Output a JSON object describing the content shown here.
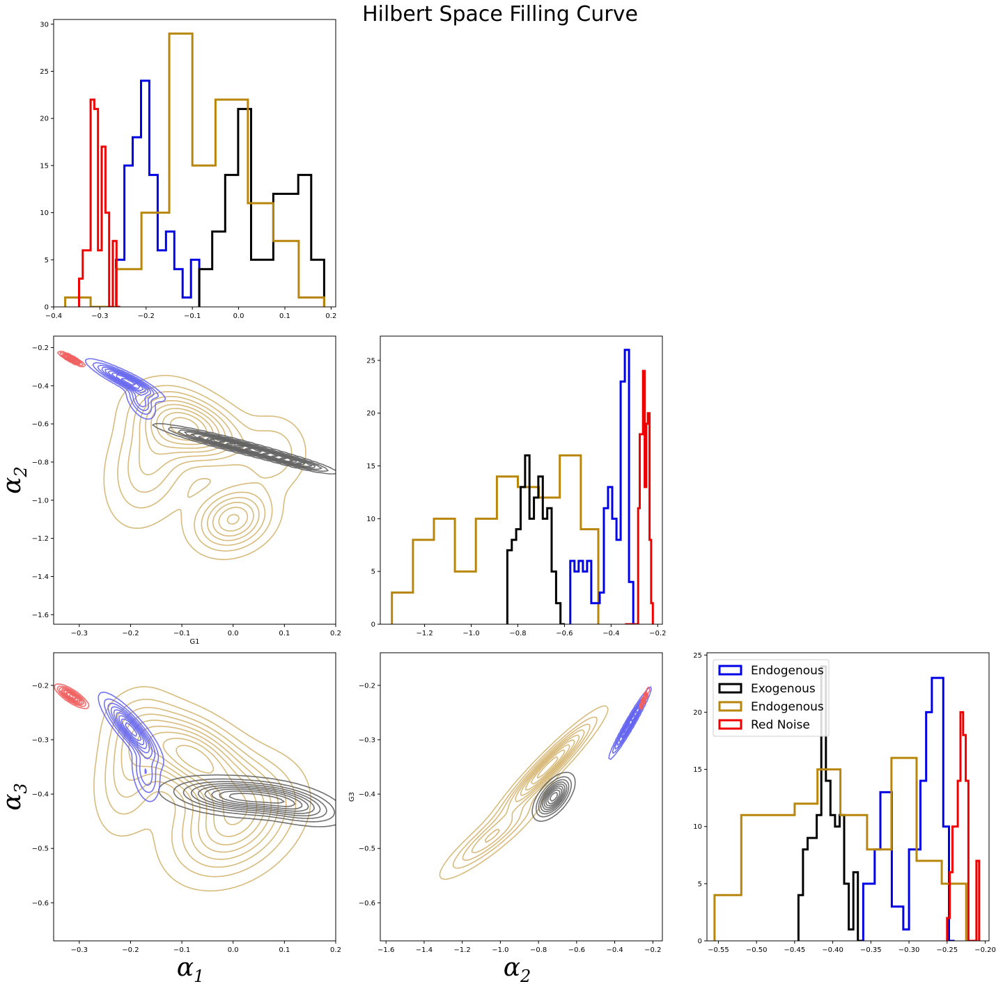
{
  "title": "Hilbert Space Filling Curve",
  "colors": {
    "endo_blue": "#0000e6",
    "exo": "#000000",
    "endo_gold": "#b8860b",
    "red": "#ee0000",
    "kde_blue": "#6464f0",
    "kde_exo": "#606060",
    "kde_gold": "#d4b46e",
    "kde_red": "#f06060"
  },
  "legend": {
    "placement": "upper-left",
    "entries": [
      "Endogenous",
      "Exogenous",
      "Endogenous",
      "Red Noise"
    ]
  },
  "axis_texts": {
    "g1": "G1",
    "g3": "G3",
    "alpha": "α",
    "sub1": "1",
    "sub2": "2",
    "sub3": "3"
  },
  "chart_data": [
    {
      "type": "histogram",
      "panel": "top-left",
      "xlim": [
        -0.4,
        0.21
      ],
      "ylim": [
        0,
        30.5
      ],
      "xticks": [
        -0.4,
        -0.3,
        -0.2,
        -0.1,
        0.0,
        0.1,
        0.2
      ],
      "xtick_labels": [
        "−0.4",
        "−0.3",
        "−0.2",
        "−0.1",
        "0.0",
        "0.1",
        "0.2"
      ],
      "yticks": [
        0,
        5,
        10,
        15,
        20,
        25,
        30
      ],
      "ytick_labels": [
        "0",
        "5",
        "10",
        "15",
        "20",
        "25",
        "30"
      ],
      "series": [
        {
          "color": "endo_blue",
          "edges": [
            -0.265,
            -0.247,
            -0.229,
            -0.211,
            -0.193,
            -0.175,
            -0.157,
            -0.139,
            -0.121,
            -0.103,
            -0.085
          ],
          "counts": [
            5,
            15,
            18,
            24,
            14,
            6,
            8,
            4,
            1,
            5
          ]
        },
        {
          "color": "exo",
          "edges": [
            -0.085,
            -0.057,
            -0.029,
            -0.001,
            0.027,
            0.075,
            0.129,
            0.157,
            0.185
          ],
          "counts": [
            4,
            8,
            14,
            21,
            5,
            12,
            14,
            5
          ]
        },
        {
          "color": "endo_gold",
          "edges": [
            -0.375,
            -0.32,
            -0.265,
            -0.21,
            -0.15,
            -0.1,
            -0.05,
            0.02,
            0.075,
            0.13,
            0.185
          ],
          "counts": [
            1,
            0,
            4,
            10,
            29,
            15,
            22,
            11,
            7,
            1
          ]
        },
        {
          "color": "red",
          "edges": [
            -0.345,
            -0.337,
            -0.328,
            -0.32,
            -0.312,
            -0.304,
            -0.296,
            -0.288,
            -0.28,
            -0.272,
            -0.264,
            -0.256
          ],
          "counts": [
            3,
            6,
            6,
            22,
            21,
            6,
            17,
            10,
            0,
            7,
            0
          ]
        }
      ]
    },
    {
      "type": "kde",
      "panel": "middle-left",
      "xlim": [
        -0.35,
        0.2
      ],
      "ylim": [
        -1.65,
        -0.14
      ],
      "xticks": [
        -0.3,
        -0.2,
        -0.1,
        0.0,
        0.1,
        0.2
      ],
      "xtick_labels": [
        "−0.3",
        "−0.2",
        "−0.1",
        "0.0",
        "0.1",
        "0.2"
      ],
      "yticks": [
        -1.6,
        -1.4,
        -1.2,
        -1.0,
        -0.8,
        -0.6,
        -0.4,
        -0.2
      ],
      "ytick_labels": [
        "−1.6",
        "−1.4",
        "−1.2",
        "−1.0",
        "−0.8",
        "−0.6",
        "−0.4",
        "−0.2"
      ],
      "xlabel_key": "g1",
      "ylabel_sub": "sub2",
      "clusters": [
        {
          "color": "kde_gold",
          "levels": 9,
          "blobs": [
            {
              "cx": -0.08,
              "cy": -0.62,
              "sx": 0.06,
              "sy": 0.11,
              "rho": -0.4,
              "w": 1.0
            },
            {
              "cx": 0.0,
              "cy": -1.1,
              "sx": 0.045,
              "sy": 0.1,
              "rho": 0.2,
              "w": 0.85
            },
            {
              "cx": -0.16,
              "cy": -0.78,
              "sx": 0.05,
              "sy": 0.2,
              "rho": 0.3,
              "w": 0.5
            },
            {
              "cx": 0.08,
              "cy": -0.75,
              "sx": 0.04,
              "sy": 0.12,
              "rho": 0.0,
              "w": 0.3
            }
          ]
        },
        {
          "color": "kde_exo",
          "levels": 9,
          "blobs": [
            {
              "cx": 0.0,
              "cy": -0.71,
              "sx": 0.07,
              "sy": 0.05,
              "rho": -0.95,
              "w": 1.0
            },
            {
              "cx": 0.12,
              "cy": -0.8,
              "sx": 0.04,
              "sy": 0.03,
              "rho": -0.9,
              "w": 0.6
            }
          ]
        },
        {
          "color": "kde_blue",
          "levels": 9,
          "blobs": [
            {
              "cx": -0.21,
              "cy": -0.37,
              "sx": 0.035,
              "sy": 0.05,
              "rho": -0.9,
              "w": 1.0
            },
            {
              "cx": -0.18,
              "cy": -0.48,
              "sx": 0.015,
              "sy": 0.05,
              "rho": -0.5,
              "w": 0.5
            }
          ]
        },
        {
          "color": "kde_red",
          "levels": 9,
          "blobs": [
            {
              "cx": -0.315,
              "cy": -0.26,
              "sx": 0.012,
              "sy": 0.018,
              "rho": -0.9,
              "w": 1.0
            }
          ]
        }
      ]
    },
    {
      "type": "histogram",
      "panel": "middle-center",
      "xlim": [
        -1.39,
        -0.18
      ],
      "ylim": [
        0,
        27.3
      ],
      "xticks": [
        -1.2,
        -1.0,
        -0.8,
        -0.6,
        -0.4,
        -0.2
      ],
      "xtick_labels": [
        "−1.2",
        "−1.0",
        "−0.8",
        "−0.6",
        "−0.4",
        "−0.2"
      ],
      "yticks": [
        0,
        5,
        10,
        15,
        20,
        25
      ],
      "ytick_labels": [
        "0",
        "5",
        "10",
        "15",
        "20",
        "25"
      ],
      "series": [
        {
          "color": "endo_gold",
          "edges": [
            -1.34,
            -1.25,
            -1.16,
            -1.07,
            -0.98,
            -0.89,
            -0.8,
            -0.71,
            -0.62,
            -0.53,
            -0.455
          ],
          "counts": [
            3,
            8,
            10,
            5,
            10,
            14,
            13,
            12,
            16,
            9
          ]
        },
        {
          "color": "exo",
          "edges": [
            -0.845,
            -0.826,
            -0.807,
            -0.788,
            -0.769,
            -0.75,
            -0.731,
            -0.712,
            -0.693,
            -0.674,
            -0.655,
            -0.636,
            -0.617,
            -0.598
          ],
          "counts": [
            7,
            8,
            9,
            13,
            16,
            10,
            12,
            14,
            10,
            11,
            5,
            2,
            0
          ]
        },
        {
          "color": "endo_blue",
          "edges": [
            -0.575,
            -0.557,
            -0.539,
            -0.521,
            -0.503,
            -0.485,
            -0.467,
            -0.449,
            -0.431,
            -0.413,
            -0.395,
            -0.377,
            -0.359,
            -0.341,
            -0.323,
            -0.305,
            -0.287
          ],
          "counts": [
            6,
            5,
            6,
            5,
            6,
            2,
            2,
            3,
            11,
            13,
            10,
            8,
            23,
            26,
            4,
            0
          ]
        },
        {
          "color": "red",
          "edges": [
            -0.34,
            -0.333,
            -0.326,
            -0.319,
            -0.312,
            -0.305,
            -0.298,
            -0.291,
            -0.284,
            -0.277,
            -0.27,
            -0.263,
            -0.256,
            -0.249,
            -0.242,
            -0.235,
            -0.228,
            -0.221
          ],
          "counts": [
            0,
            0,
            0,
            0,
            0,
            0,
            0,
            0,
            11,
            18,
            18,
            24,
            13,
            19,
            20,
            8,
            2
          ]
        }
      ]
    },
    {
      "type": "kde",
      "panel": "bottom-left",
      "xlim": [
        -0.35,
        0.2
      ],
      "ylim": [
        -0.67,
        -0.14
      ],
      "xticks": [
        -0.3,
        -0.2,
        -0.1,
        0.0,
        0.1,
        0.2
      ],
      "xtick_labels": [
        "−0.3",
        "−0.2",
        "−0.1",
        "0.0",
        "0.1",
        "0.2"
      ],
      "yticks": [
        -0.6,
        -0.5,
        -0.4,
        -0.3,
        -0.2
      ],
      "ytick_labels": [
        "−0.6",
        "−0.5",
        "−0.4",
        "−0.3",
        "−0.2"
      ],
      "xlabel_sub": "sub1",
      "ylabel_sub": "sub3",
      "clusters": [
        {
          "color": "kde_gold",
          "levels": 9,
          "blobs": [
            {
              "cx": -0.08,
              "cy": -0.33,
              "sx": 0.07,
              "sy": 0.05,
              "rho": -0.5,
              "w": 1.0
            },
            {
              "cx": 0.0,
              "cy": -0.45,
              "sx": 0.07,
              "sy": 0.06,
              "rho": 0.3,
              "w": 0.8
            },
            {
              "cx": -0.2,
              "cy": -0.35,
              "sx": 0.04,
              "sy": 0.07,
              "rho": 0.3,
              "w": 0.4
            }
          ]
        },
        {
          "color": "kde_exo",
          "levels": 9,
          "blobs": [
            {
              "cx": 0.01,
              "cy": -0.405,
              "sx": 0.07,
              "sy": 0.018,
              "rho": -0.3,
              "w": 1.0
            },
            {
              "cx": 0.12,
              "cy": -0.42,
              "sx": 0.05,
              "sy": 0.02,
              "rho": -0.5,
              "w": 0.6
            }
          ]
        },
        {
          "color": "kde_blue",
          "levels": 9,
          "blobs": [
            {
              "cx": -0.2,
              "cy": -0.28,
              "sx": 0.028,
              "sy": 0.03,
              "rho": -0.85,
              "w": 1.0
            },
            {
              "cx": -0.17,
              "cy": -0.36,
              "sx": 0.015,
              "sy": 0.03,
              "rho": -0.3,
              "w": 0.4
            }
          ]
        },
        {
          "color": "kde_red",
          "levels": 9,
          "blobs": [
            {
              "cx": -0.315,
              "cy": -0.22,
              "sx": 0.015,
              "sy": 0.01,
              "rho": -0.8,
              "w": 1.0
            }
          ]
        }
      ]
    },
    {
      "type": "kde",
      "panel": "bottom-center",
      "xlim": [
        -1.63,
        -0.15
      ],
      "ylim": [
        -0.67,
        -0.14
      ],
      "xticks": [
        -1.6,
        -1.4,
        -1.2,
        -1.0,
        -0.8,
        -0.6,
        -0.4,
        -0.2
      ],
      "xtick_labels": [
        "−1.6",
        "−1.4",
        "−1.2",
        "−1.0",
        "−0.8",
        "−0.6",
        "−0.4",
        "−0.2"
      ],
      "yticks": [
        -0.6,
        -0.5,
        -0.4,
        -0.3,
        -0.2
      ],
      "ytick_labels": [
        "−0.6",
        "−0.5",
        "−0.4",
        "−0.3",
        "−0.2"
      ],
      "xlabel_sub": "sub2",
      "ylabel_key": "g3",
      "clusters": [
        {
          "color": "kde_gold",
          "levels": 9,
          "blobs": [
            {
              "cx": -0.75,
              "cy": -0.35,
              "sx": 0.14,
              "sy": 0.05,
              "rho": 0.95,
              "w": 1.0
            },
            {
              "cx": -1.05,
              "cy": -0.48,
              "sx": 0.14,
              "sy": 0.04,
              "rho": 0.9,
              "w": 0.5
            }
          ]
        },
        {
          "color": "kde_exo",
          "levels": 9,
          "blobs": [
            {
              "cx": -0.72,
              "cy": -0.405,
              "sx": 0.05,
              "sy": 0.02,
              "rho": 0.6,
              "w": 1.0
            }
          ]
        },
        {
          "color": "kde_blue",
          "levels": 9,
          "blobs": [
            {
              "cx": -0.32,
              "cy": -0.27,
              "sx": 0.05,
              "sy": 0.03,
              "rho": 0.97,
              "w": 1.0
            }
          ]
        },
        {
          "color": "kde_red",
          "levels": 9,
          "blobs": [
            {
              "cx": -0.245,
              "cy": -0.225,
              "sx": 0.012,
              "sy": 0.01,
              "rho": 0.95,
              "w": 1.0
            }
          ]
        }
      ]
    },
    {
      "type": "histogram",
      "panel": "bottom-right",
      "xlim": [
        -0.565,
        -0.195
      ],
      "ylim": [
        0,
        25.2
      ],
      "xticks": [
        -0.55,
        -0.5,
        -0.45,
        -0.4,
        -0.35,
        -0.3,
        -0.25,
        -0.2
      ],
      "xtick_labels": [
        "−0.55",
        "−0.50",
        "−0.45",
        "−0.40",
        "−0.35",
        "−0.30",
        "−0.25",
        "−0.20"
      ],
      "yticks": [
        0,
        5,
        10,
        15,
        20,
        25
      ],
      "ytick_labels": [
        "0",
        "5",
        "10",
        "15",
        "20",
        "25"
      ],
      "series": [
        {
          "color": "endo_blue",
          "edges": [
            -0.36,
            -0.3525,
            -0.345,
            -0.3375,
            -0.33,
            -0.3225,
            -0.315,
            -0.3075,
            -0.3,
            -0.2925,
            -0.285,
            -0.2775,
            -0.27,
            -0.2625,
            -0.255,
            -0.2475,
            -0.24
          ],
          "counts": [
            5,
            5,
            8,
            13,
            13,
            3,
            3,
            1,
            8,
            8,
            14,
            20,
            23,
            23,
            10,
            0
          ]
        },
        {
          "color": "exo",
          "edges": [
            -0.445,
            -0.439,
            -0.433,
            -0.427,
            -0.421,
            -0.415,
            -0.409,
            -0.403,
            -0.397,
            -0.391,
            -0.385,
            -0.379,
            -0.373,
            -0.367,
            -0.361
          ],
          "counts": [
            4,
            8,
            9,
            9,
            11,
            24,
            14,
            11,
            10,
            11,
            5,
            1,
            6,
            0
          ]
        },
        {
          "color": "endo_gold",
          "edges": [
            -0.555,
            -0.52,
            -0.485,
            -0.45,
            -0.42,
            -0.39,
            -0.355,
            -0.323,
            -0.29,
            -0.257,
            -0.225
          ],
          "counts": [
            4,
            11,
            11,
            12,
            15,
            11,
            8,
            16,
            7,
            5
          ]
        },
        {
          "color": "red",
          "edges": [
            -0.25,
            -0.2465,
            -0.243,
            -0.2395,
            -0.236,
            -0.2325,
            -0.229,
            -0.2255,
            -0.222,
            -0.2185,
            -0.215,
            -0.2115,
            -0.208
          ],
          "counts": [
            2,
            6,
            10,
            10,
            14,
            20,
            18,
            14,
            0,
            0,
            0,
            7
          ]
        }
      ]
    }
  ]
}
